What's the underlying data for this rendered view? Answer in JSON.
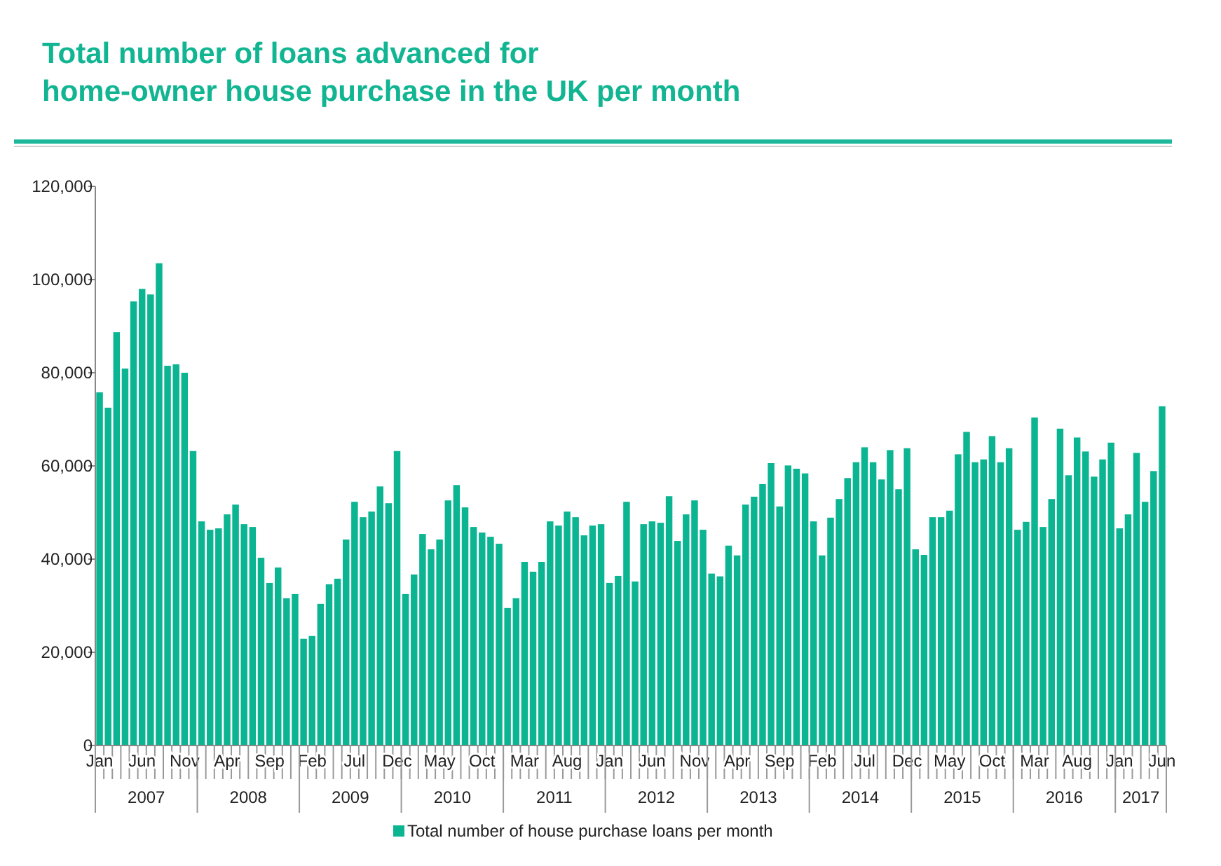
{
  "chart_data": {
    "type": "bar",
    "title": "Total number of loans advanced for\nhome-owner house purchase in the UK per month",
    "x": [
      "2007-01",
      "2007-02",
      "2007-03",
      "2007-04",
      "2007-05",
      "2007-06",
      "2007-07",
      "2007-08",
      "2007-09",
      "2007-10",
      "2007-11",
      "2007-12",
      "2008-01",
      "2008-02",
      "2008-03",
      "2008-04",
      "2008-05",
      "2008-06",
      "2008-07",
      "2008-08",
      "2008-09",
      "2008-10",
      "2008-11",
      "2008-12",
      "2009-01",
      "2009-02",
      "2009-03",
      "2009-04",
      "2009-05",
      "2009-06",
      "2009-07",
      "2009-08",
      "2009-09",
      "2009-10",
      "2009-11",
      "2009-12",
      "2010-01",
      "2010-02",
      "2010-03",
      "2010-04",
      "2010-05",
      "2010-06",
      "2010-07",
      "2010-08",
      "2010-09",
      "2010-10",
      "2010-11",
      "2010-12",
      "2011-01",
      "2011-02",
      "2011-03",
      "2011-04",
      "2011-05",
      "2011-06",
      "2011-07",
      "2011-08",
      "2011-09",
      "2011-10",
      "2011-11",
      "2011-12",
      "2012-01",
      "2012-02",
      "2012-03",
      "2012-04",
      "2012-05",
      "2012-06",
      "2012-07",
      "2012-08",
      "2012-09",
      "2012-10",
      "2012-11",
      "2012-12",
      "2013-01",
      "2013-02",
      "2013-03",
      "2013-04",
      "2013-05",
      "2013-06",
      "2013-07",
      "2013-08",
      "2013-09",
      "2013-10",
      "2013-11",
      "2013-12",
      "2014-01",
      "2014-02",
      "2014-03",
      "2014-04",
      "2014-05",
      "2014-06",
      "2014-07",
      "2014-08",
      "2014-09",
      "2014-10",
      "2014-11",
      "2014-12",
      "2015-01",
      "2015-02",
      "2015-03",
      "2015-04",
      "2015-05",
      "2015-06",
      "2015-07",
      "2015-08",
      "2015-09",
      "2015-10",
      "2015-11",
      "2015-12",
      "2016-01",
      "2016-02",
      "2016-03",
      "2016-04",
      "2016-05",
      "2016-06",
      "2016-07",
      "2016-08",
      "2016-09",
      "2016-10",
      "2016-11",
      "2016-12",
      "2017-01",
      "2017-02",
      "2017-03",
      "2017-04",
      "2017-05",
      "2017-06"
    ],
    "series": [
      {
        "name": "Total number of house purchase loans per month",
        "color": "#0bb592",
        "values": [
          75800,
          72500,
          88700,
          80900,
          95300,
          98000,
          96800,
          103500,
          81500,
          81800,
          80000,
          63200,
          48100,
          46300,
          46600,
          49600,
          51700,
          47500,
          46900,
          40300,
          34900,
          38200,
          31600,
          32500,
          22900,
          23500,
          30400,
          34600,
          35800,
          44200,
          52300,
          49000,
          50200,
          55600,
          52000,
          63200,
          32500,
          36700,
          45400,
          42100,
          44200,
          52600,
          55900,
          51100,
          46900,
          45700,
          44800,
          43300,
          29500,
          31600,
          39400,
          37300,
          39400,
          48100,
          47200,
          50200,
          49000,
          45100,
          47200,
          47500,
          34900,
          36400,
          52300,
          35200,
          47500,
          48100,
          47800,
          53500,
          43900,
          49600,
          52600,
          46300,
          36900,
          36300,
          42900,
          40800,
          51700,
          53400,
          56100,
          60600,
          51300,
          60100,
          59400,
          58400,
          48100,
          40800,
          48900,
          52900,
          57400,
          60800,
          64000,
          60800,
          57100,
          63400,
          55000,
          63800,
          42100,
          40900,
          49000,
          49000,
          50400,
          62500,
          67300,
          60800,
          61400,
          66400,
          60800,
          63800,
          46300,
          48000,
          70400,
          46900,
          52900,
          68000,
          58000,
          66100,
          63100,
          57700,
          61400,
          65000,
          46600,
          49600,
          62800,
          52300,
          58900,
          72800
        ]
      }
    ],
    "xticks": [
      {
        "value": "2007-01",
        "label": "Jan"
      },
      {
        "value": "2007-06",
        "label": "Jun"
      },
      {
        "value": "2007-11",
        "label": "Nov"
      },
      {
        "value": "2008-04",
        "label": "Apr"
      },
      {
        "value": "2008-09",
        "label": "Sep"
      },
      {
        "value": "2009-02",
        "label": "Feb"
      },
      {
        "value": "2009-07",
        "label": "Jul"
      },
      {
        "value": "2009-12",
        "label": "Dec"
      },
      {
        "value": "2010-05",
        "label": "May"
      },
      {
        "value": "2010-10",
        "label": "Oct"
      },
      {
        "value": "2011-03",
        "label": "Mar"
      },
      {
        "value": "2011-08",
        "label": "Aug"
      },
      {
        "value": "2012-01",
        "label": "Jan"
      },
      {
        "value": "2012-06",
        "label": "Jun"
      },
      {
        "value": "2012-11",
        "label": "Nov"
      },
      {
        "value": "2013-04",
        "label": "Apr"
      },
      {
        "value": "2013-09",
        "label": "Sep"
      },
      {
        "value": "2014-02",
        "label": "Feb"
      },
      {
        "value": "2014-07",
        "label": "Jul"
      },
      {
        "value": "2014-12",
        "label": "Dec"
      },
      {
        "value": "2015-05",
        "label": "May"
      },
      {
        "value": "2015-10",
        "label": "Oct"
      },
      {
        "value": "2016-03",
        "label": "Mar"
      },
      {
        "value": "2016-08",
        "label": "Aug"
      },
      {
        "value": "2017-01",
        "label": "Jan"
      },
      {
        "value": "2017-06",
        "label": "Jun"
      }
    ],
    "annotations": [
      "2007",
      "2008",
      "2009",
      "2010",
      "2011",
      "2012",
      "2013",
      "2014",
      "2015",
      "2016",
      "2017"
    ],
    "xlim": [
      "2007-01",
      "2017-06"
    ],
    "ylim": [
      0,
      120000
    ],
    "yticks": [
      {
        "value": 0,
        "label": "0"
      },
      {
        "value": 20000,
        "label": "20,000"
      },
      {
        "value": 40000,
        "label": "40,000"
      },
      {
        "value": 60000,
        "label": "60,000"
      },
      {
        "value": 80000,
        "label": "80,000"
      },
      {
        "value": 100000,
        "label": "100,000"
      },
      {
        "value": 120000,
        "label": "120,000"
      }
    ],
    "grid": false,
    "legend": "bottom"
  }
}
